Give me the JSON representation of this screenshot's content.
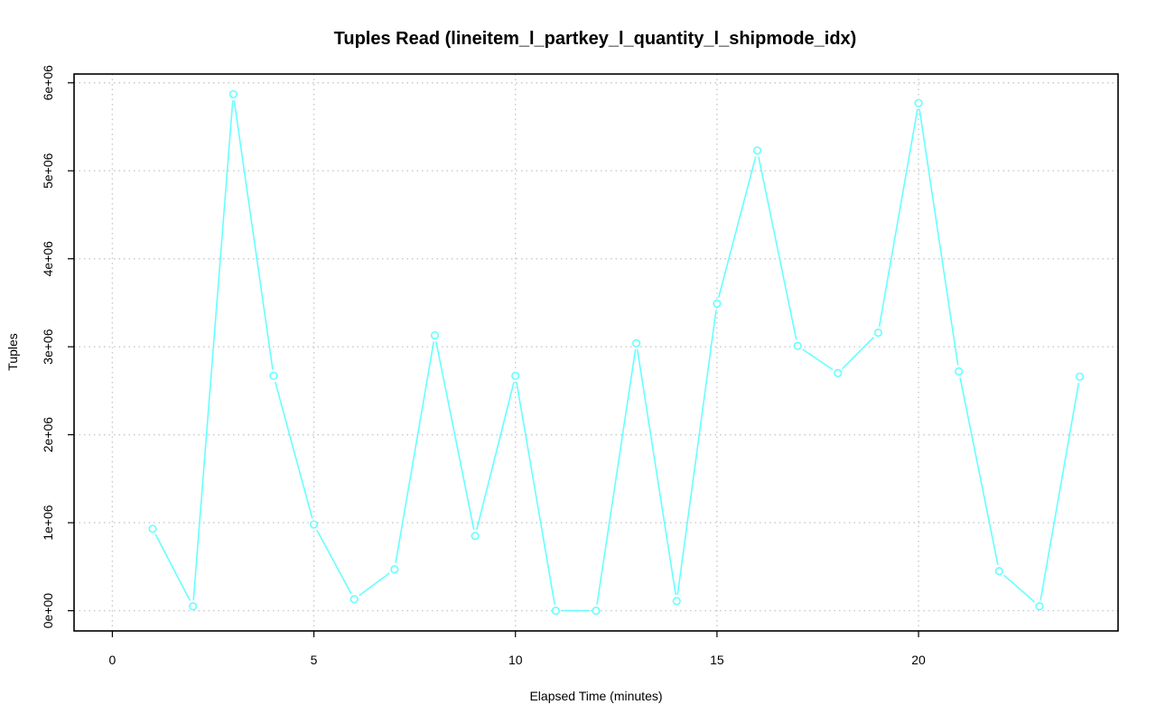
{
  "chart_data": {
    "type": "line",
    "title": "Tuples Read (lineitem_l_partkey_l_quantity_l_shipmode_idx)",
    "xlabel": "Elapsed Time (minutes)",
    "ylabel": "Tuples",
    "x_ticks": [
      "0",
      "5",
      "10",
      "15",
      "20"
    ],
    "y_ticks": [
      "0e+00",
      "1e+06",
      "2e+06",
      "3e+06",
      "4e+06",
      "5e+06",
      "6e+06"
    ],
    "xlim": [
      -0.95,
      24.95
    ],
    "ylim": [
      -230000,
      6100000
    ],
    "grid": true,
    "series_color": "#66ffff",
    "series": [
      {
        "x": [
          1,
          2,
          3,
          4,
          5,
          6,
          7,
          8,
          9,
          10,
          11,
          12,
          13,
          14,
          15,
          16,
          17,
          18,
          19,
          20,
          21,
          22,
          23,
          24
        ],
        "values": [
          930000,
          50000,
          5870000,
          2670000,
          980000,
          130000,
          470000,
          3130000,
          850000,
          2670000,
          0,
          0,
          3040000,
          110000,
          3490000,
          5230000,
          3010000,
          2700000,
          3160000,
          5770000,
          2720000,
          450000,
          50000,
          2660000
        ]
      }
    ]
  }
}
